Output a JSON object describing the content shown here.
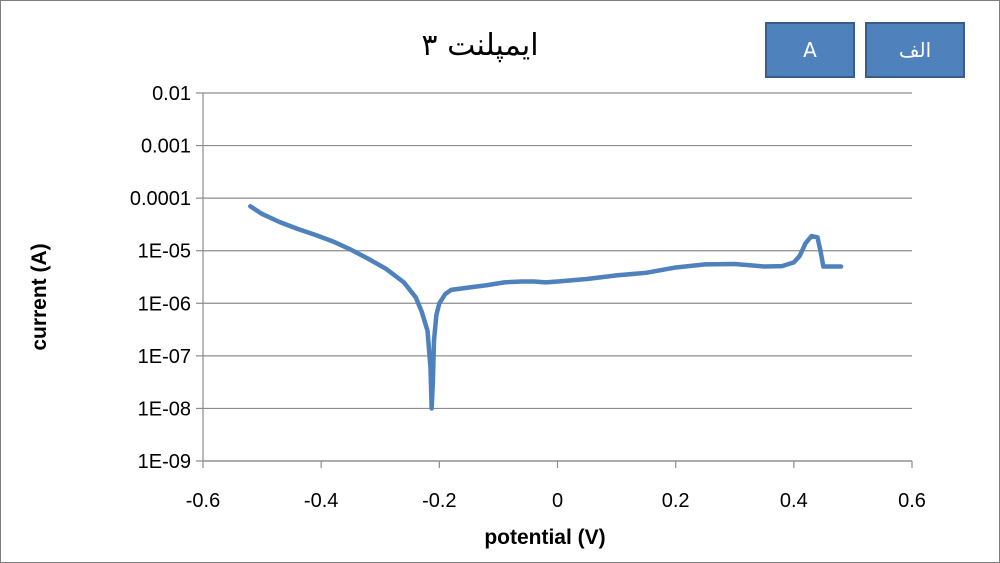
{
  "chart_data": {
    "type": "line",
    "title": "ایمپلنت ۳",
    "xlabel": "potential (V)",
    "ylabel": "current (A)",
    "xlim": [
      -0.6,
      0.6
    ],
    "ylim": [
      1e-09,
      0.01
    ],
    "y_scale": "log",
    "x_ticks": [
      -0.6,
      -0.4,
      -0.2,
      0,
      0.2,
      0.4,
      0.6
    ],
    "x_tick_labels": [
      "-0.6",
      "-0.4",
      "-0.2",
      "0",
      "0.2",
      "0.4",
      "0.6"
    ],
    "y_ticks": [
      1e-09,
      1e-08,
      1e-07,
      1e-06,
      1e-05,
      0.0001,
      0.001,
      0.01
    ],
    "y_tick_labels": [
      "1E-09",
      "1E-08",
      "1E-07",
      "1E-06",
      "1E-05",
      "0.0001",
      "0.001",
      "0.01"
    ],
    "grid": "horizontal",
    "legend": "none",
    "series": [
      {
        "color": "#4f81bd",
        "x": [
          -0.52,
          -0.5,
          -0.47,
          -0.44,
          -0.41,
          -0.38,
          -0.35,
          -0.32,
          -0.29,
          -0.26,
          -0.24,
          -0.23,
          -0.22,
          -0.215,
          -0.213,
          -0.211,
          -0.209,
          -0.205,
          -0.2,
          -0.19,
          -0.18,
          -0.15,
          -0.12,
          -0.09,
          -0.06,
          -0.04,
          -0.02,
          0,
          0.05,
          0.1,
          0.15,
          0.2,
          0.25,
          0.3,
          0.35,
          0.38,
          0.4,
          0.41,
          0.42,
          0.43,
          0.44,
          0.445,
          0.45,
          0.48
        ],
        "y": [
          7e-05,
          5e-05,
          3.5e-05,
          2.6e-05,
          2e-05,
          1.5e-05,
          1.05e-05,
          7e-06,
          4.5e-06,
          2.5e-06,
          1.3e-06,
          7e-07,
          3e-07,
          6e-08,
          1e-08,
          3e-08,
          2e-07,
          6e-07,
          1e-06,
          1.5e-06,
          1.8e-06,
          2e-06,
          2.2e-06,
          2.5e-06,
          2.6e-06,
          2.6e-06,
          2.5e-06,
          2.6e-06,
          2.9e-06,
          3.4e-06,
          3.8e-06,
          4.8e-06,
          5.5e-06,
          5.6e-06,
          5e-06,
          5.1e-06,
          6e-06,
          8e-06,
          1.4e-05,
          1.9e-05,
          1.8e-05,
          1e-05,
          5e-06,
          5e-06
        ]
      }
    ]
  },
  "tags": {
    "a": "A",
    "b": "الف"
  }
}
